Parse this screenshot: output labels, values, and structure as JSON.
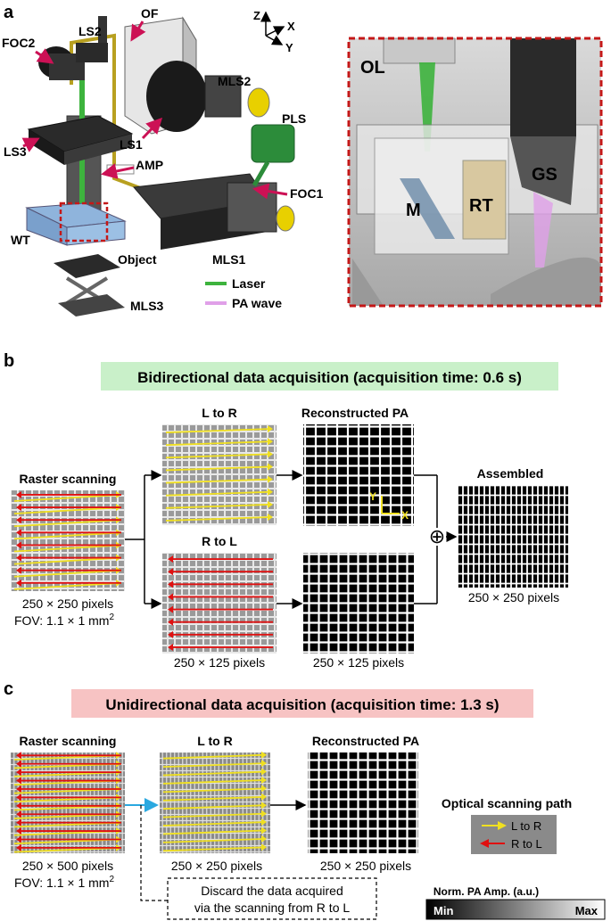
{
  "panel_a": {
    "letter": "a",
    "axes": {
      "z": "Z",
      "x": "X",
      "y": "Y"
    },
    "components": {
      "of": "OF",
      "ls2": "LS2",
      "foc2": "FOC2",
      "mls2": "MLS2",
      "pls": "PLS",
      "ls1": "LS1",
      "ls3": "LS3",
      "amp": "AMP",
      "foc1": "FOC1",
      "wt": "WT",
      "object": "Object",
      "mls1": "MLS1",
      "mls3": "MLS3"
    },
    "legend": {
      "laser": "Laser",
      "pa_wave": "PA wave"
    },
    "inset": {
      "ol": "OL",
      "gs": "GS",
      "m": "M",
      "rt": "RT"
    },
    "colors": {
      "laser": "#3db33d",
      "pa_wave": "#e0a0e8",
      "arrows": "#cc1155",
      "fiber": "#b8a020",
      "inset_border": "#c41818"
    }
  },
  "panel_b": {
    "letter": "b",
    "title": "Bidirectional data acquisition (acquisition time: 0.6 s)",
    "title_bg": "#c9f0c9",
    "raster_title": "Raster scanning",
    "raster_caption1": "250 × 250 pixels",
    "raster_caption2": "FOV: 1.1 × 1 mm",
    "raster_caption_sup": "2",
    "ltor_title": "L to R",
    "rtol_title": "R to L",
    "recon_title": "Reconstructed PA",
    "recon_axis_y": "Y",
    "recon_axis_x": "X",
    "assembled_title": "Assembled",
    "caption_125": "250 × 125 pixels",
    "caption_125b": "250 × 125 pixels",
    "assembled_caption": "250 × 250 pixels",
    "plus": "⊕"
  },
  "panel_c": {
    "letter": "c",
    "title": "Unidirectional data acquisition (acquisition time: 1.3 s)",
    "title_bg": "#f7c3c3",
    "raster_title": "Raster scanning",
    "raster_caption1": "250 × 500 pixels",
    "raster_caption2": "FOV: 1.1 × 1 mm",
    "raster_caption_sup": "2",
    "ltor_title": "L to R",
    "ltor_caption": "250 × 250 pixels",
    "recon_title": "Reconstructed PA",
    "recon_caption": "250 × 250 pixels",
    "discard_line1": "Discard the data acquired",
    "discard_line2": "via the scanning from R to L",
    "osp_title": "Optical scanning path",
    "osp_ltor": "L to R",
    "osp_rtol": "R to L",
    "colorbar_title": "Norm. PA Amp. (a.u.)",
    "colorbar_min": "Min",
    "colorbar_max": "Max"
  },
  "colors": {
    "ltor_arrow": "#f0e020",
    "rtol_arrow": "#e01010",
    "connector": "#2aa8e0"
  }
}
